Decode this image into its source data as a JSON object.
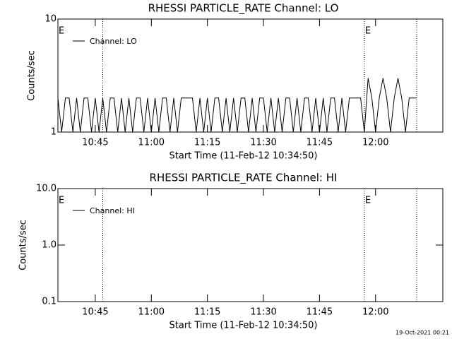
{
  "chart_data": [
    {
      "type": "line",
      "title": "RHESSI PARTICLE_RATE Channel: LO",
      "y_label": "Counts/sec",
      "x_label": "Start Time (11-Feb-12 10:34:50)",
      "log_scale": true,
      "ylim": [
        1,
        10
      ],
      "yticks": [
        1,
        10
      ],
      "xlim": [
        "10:35",
        "12:18"
      ],
      "xticks": [
        "10:45",
        "11:00",
        "11:15",
        "11:30",
        "11:45",
        "12:00"
      ],
      "vlines": [
        "10:47",
        "11:57",
        "12:11"
      ],
      "annotations": [
        {
          "text": "E",
          "x": "10:35"
        },
        {
          "text": "E",
          "x": "11:57"
        }
      ],
      "series": [
        {
          "name": "Channel: LO",
          "color": "#000000",
          "x": [
            "10:35",
            "10:36",
            "10:37",
            "10:38",
            "10:39",
            "10:40",
            "10:41",
            "10:42",
            "10:43",
            "10:44",
            "10:45",
            "10:46",
            "10:47",
            "10:48",
            "10:49",
            "10:50",
            "10:51",
            "10:52",
            "10:53",
            "10:54",
            "10:55",
            "10:56",
            "10:57",
            "10:58",
            "10:59",
            "11:00",
            "11:01",
            "11:02",
            "11:03",
            "11:04",
            "11:05",
            "11:06",
            "11:07",
            "11:08",
            "11:09",
            "11:10",
            "11:11",
            "11:12",
            "11:13",
            "11:14",
            "11:15",
            "11:16",
            "11:17",
            "11:18",
            "11:19",
            "11:20",
            "11:21",
            "11:22",
            "11:23",
            "11:24",
            "11:25",
            "11:26",
            "11:27",
            "11:28",
            "11:29",
            "11:30",
            "11:31",
            "11:32",
            "11:33",
            "11:34",
            "11:35",
            "11:36",
            "11:37",
            "11:38",
            "11:39",
            "11:40",
            "11:41",
            "11:42",
            "11:43",
            "11:44",
            "11:45",
            "11:46",
            "11:47",
            "11:48",
            "11:49",
            "11:50",
            "11:51",
            "11:52",
            "11:53",
            "11:54",
            "11:55",
            "11:56",
            "11:57",
            "11:58",
            "11:59",
            "12:00",
            "12:01",
            "12:02",
            "12:03",
            "12:04",
            "12:05",
            "12:06",
            "12:07",
            "12:08",
            "12:09",
            "12:10",
            "12:11"
          ],
          "values": [
            2,
            1,
            2,
            2,
            1,
            2,
            1,
            2,
            2,
            1,
            2,
            1,
            2,
            1,
            2,
            2,
            1,
            2,
            1,
            2,
            1,
            2,
            2,
            1,
            2,
            1,
            2,
            1,
            2,
            2,
            1,
            2,
            1,
            2,
            2,
            2,
            2,
            1,
            2,
            1,
            2,
            1,
            2,
            2,
            1,
            2,
            1,
            2,
            1,
            2,
            2,
            1,
            2,
            1,
            2,
            2,
            1,
            2,
            1,
            2,
            1,
            2,
            2,
            1,
            2,
            1,
            2,
            2,
            1,
            2,
            1,
            2,
            1,
            2,
            2,
            1,
            2,
            1,
            2,
            2,
            2,
            2,
            1,
            3,
            2,
            1,
            2,
            3,
            2,
            1,
            2,
            3,
            2,
            1,
            2,
            2,
            2
          ]
        }
      ]
    },
    {
      "type": "line",
      "title": "RHESSI PARTICLE_RATE Channel: HI",
      "y_label": "Counts/sec",
      "x_label": "Start Time (11-Feb-12 10:34:50)",
      "log_scale": true,
      "ylim": [
        0.1,
        10
      ],
      "yticks": [
        0.1,
        {
          "value": 1,
          "label": "1.0"
        },
        {
          "value": 10,
          "label": "10.0"
        }
      ],
      "xlim": [
        "10:35",
        "12:18"
      ],
      "xticks": [
        "10:45",
        "11:00",
        "11:15",
        "11:30",
        "11:45",
        "12:00"
      ],
      "vlines": [
        "10:47",
        "11:57",
        "12:11"
      ],
      "annotations": [
        {
          "text": "E",
          "x": "10:35"
        },
        {
          "text": "E",
          "x": "11:57"
        }
      ],
      "series": [
        {
          "name": "Channel: HI",
          "color": "#000000",
          "x": [],
          "values": []
        }
      ]
    }
  ],
  "footer": "19-Oct-2021 00:21"
}
